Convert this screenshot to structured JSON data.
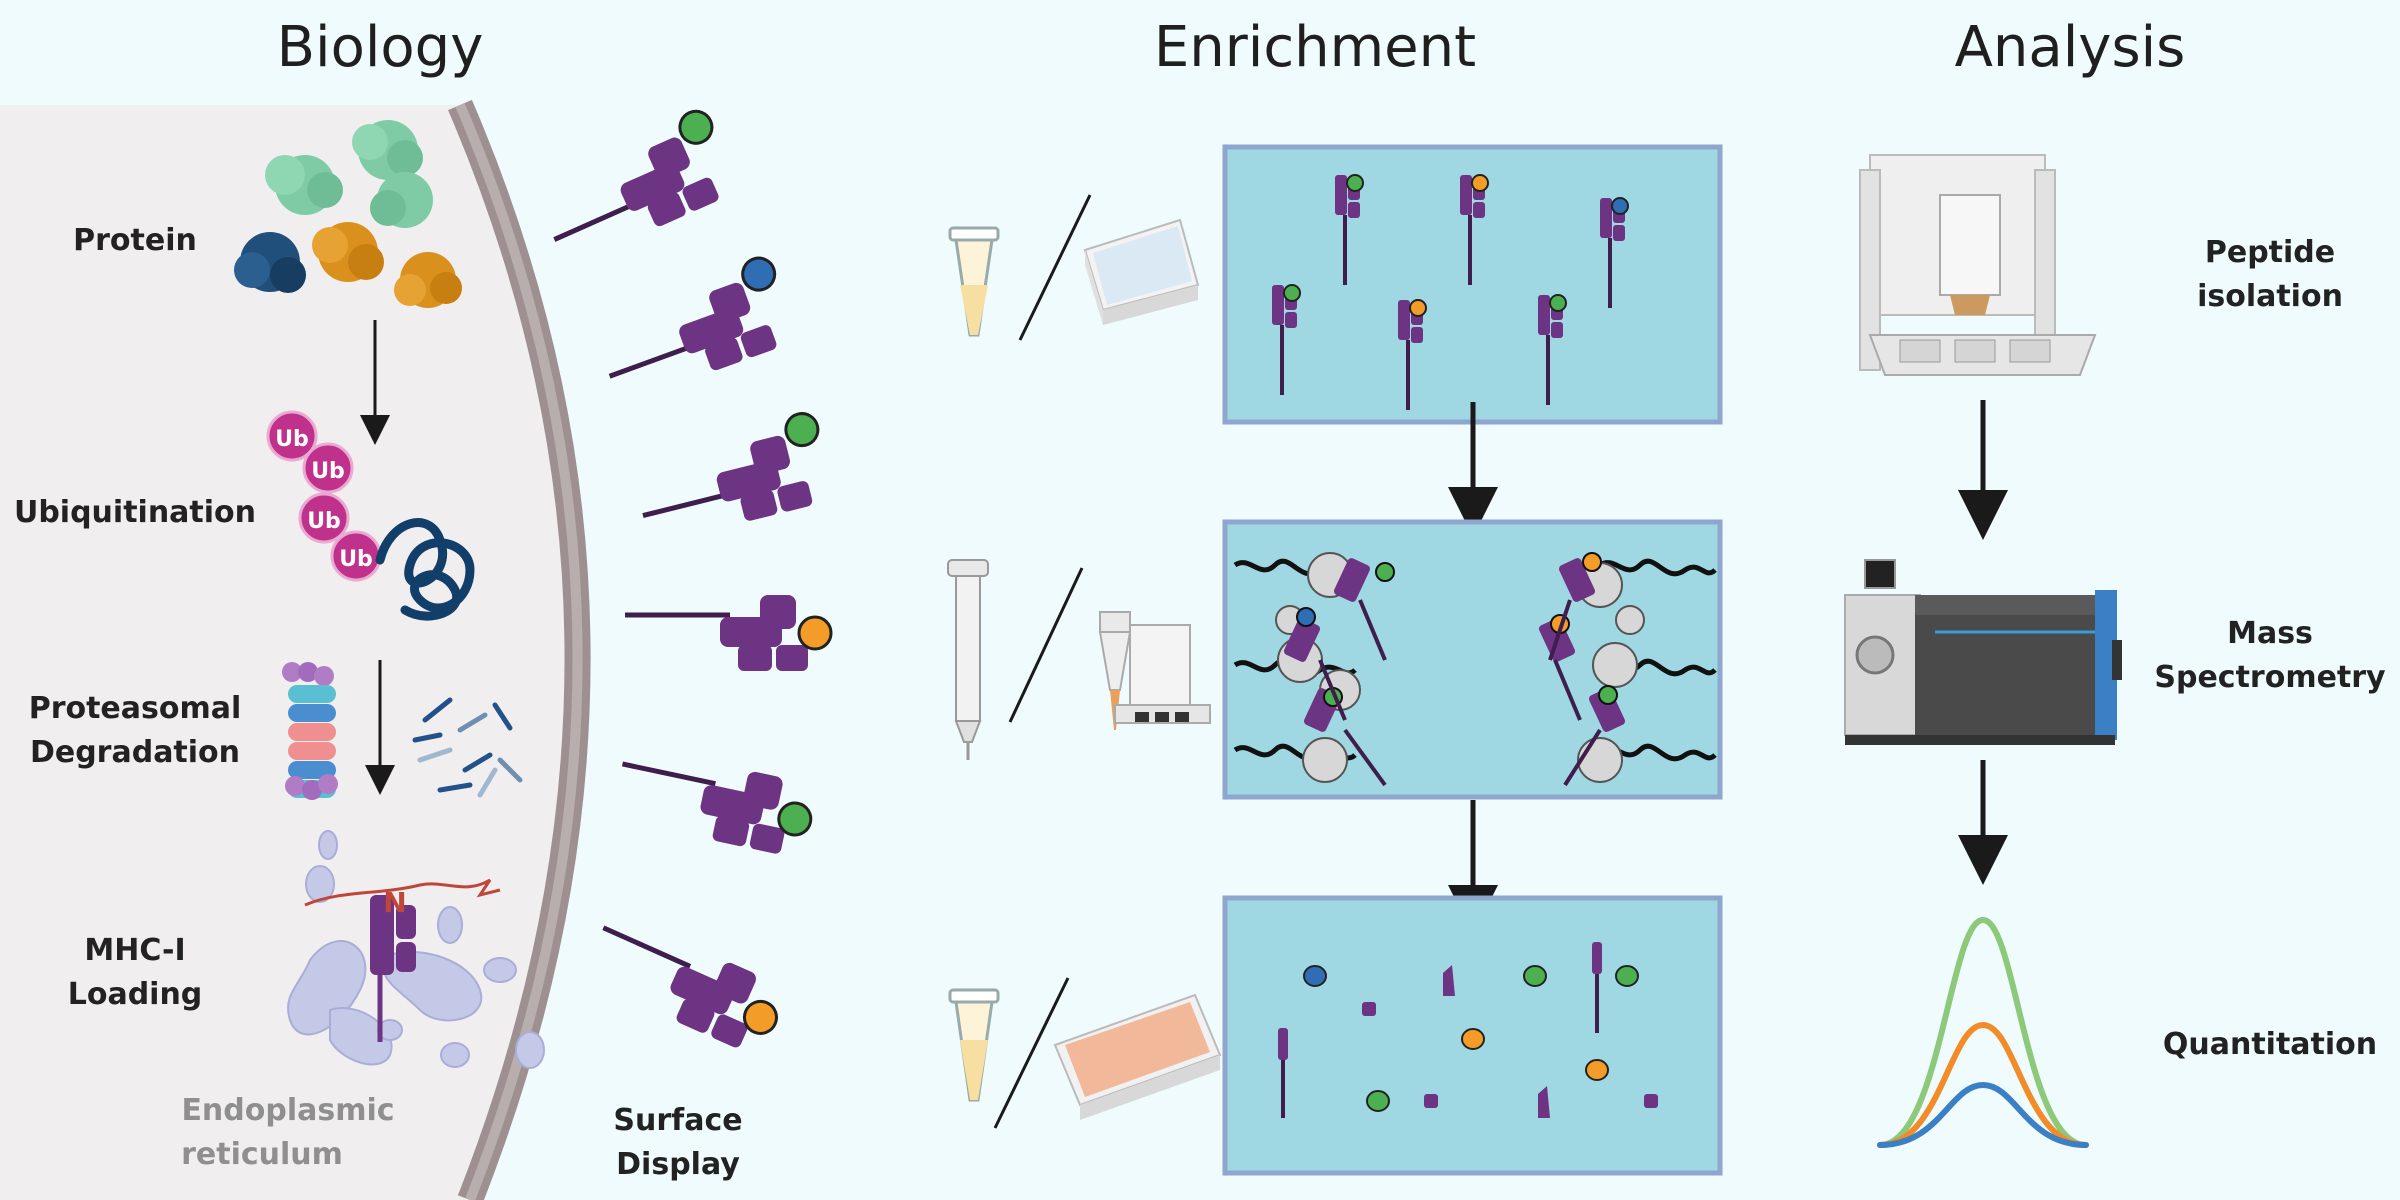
{
  "headers": {
    "biology": "Biology",
    "enrichment": "Enrichment",
    "analysis": "Analysis"
  },
  "biology": {
    "protein": "Protein",
    "ubiquitination": "Ubiquitination",
    "proteasomal_line1": "Proteasomal",
    "proteasomal_line2": "Degradation",
    "mhc_line1": "MHC-I",
    "mhc_line2": "Loading",
    "ub_tag": "Ub",
    "n_marker": "N",
    "er_line1": "Endoplasmic",
    "er_line2": "reticulum"
  },
  "surface": {
    "line1": "Surface",
    "line2": "Display"
  },
  "analysis": {
    "peptide_line1": "Peptide",
    "peptide_line2": "isolation",
    "mass_line1": "Mass",
    "mass_line2": "Spectrometry",
    "quantitation": "Quantitation"
  },
  "colors": {
    "background": "#effbfd",
    "cell": "#f0eeef",
    "membrane": "#9e9090",
    "mhc": "#6d3483",
    "panel": "#9fd8e2",
    "panel_border": "#8fa6cf",
    "peptide_green": "#4caf50",
    "peptide_blue": "#2f6db5",
    "peptide_orange": "#f39c28",
    "ub": "#c0318c",
    "curve_green": "#8cc97b",
    "curve_orange": "#f28c28",
    "curve_blue": "#3b7fc4"
  }
}
